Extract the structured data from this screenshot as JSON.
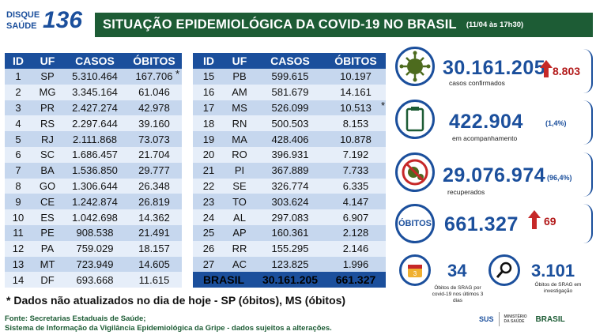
{
  "logo": {
    "line1": "DISQUE",
    "line2": "SAÚDE",
    "number": "136"
  },
  "title": {
    "main": "SITUAÇÃO EPIDEMIOLÓGICA DA COVID-19 NO BRASIL",
    "date": "(11/04 às 17h30)"
  },
  "table": {
    "headers": [
      "ID",
      "UF",
      "CASOS",
      "ÓBITOS"
    ],
    "left_rows": [
      [
        "1",
        "SP",
        "5.310.464",
        "167.706"
      ],
      [
        "2",
        "MG",
        "3.345.164",
        "61.046"
      ],
      [
        "3",
        "PR",
        "2.427.274",
        "42.978"
      ],
      [
        "4",
        "RS",
        "2.297.644",
        "39.160"
      ],
      [
        "5",
        "RJ",
        "2.111.868",
        "73.073"
      ],
      [
        "6",
        "SC",
        "1.686.457",
        "21.704"
      ],
      [
        "7",
        "BA",
        "1.536.850",
        "29.777"
      ],
      [
        "8",
        "GO",
        "1.306.644",
        "26.348"
      ],
      [
        "9",
        "CE",
        "1.242.874",
        "26.819"
      ],
      [
        "10",
        "ES",
        "1.042.698",
        "14.362"
      ],
      [
        "11",
        "PE",
        "908.538",
        "21.491"
      ],
      [
        "12",
        "PA",
        "759.029",
        "18.157"
      ],
      [
        "13",
        "MT",
        "723.949",
        "14.605"
      ],
      [
        "14",
        "DF",
        "693.668",
        "11.615"
      ]
    ],
    "right_rows": [
      [
        "15",
        "PB",
        "599.615",
        "10.197"
      ],
      [
        "16",
        "AM",
        "581.679",
        "14.161"
      ],
      [
        "17",
        "MS",
        "526.099",
        "10.513"
      ],
      [
        "18",
        "RN",
        "500.503",
        "8.153"
      ],
      [
        "19",
        "MA",
        "428.406",
        "10.878"
      ],
      [
        "20",
        "RO",
        "396.931",
        "7.192"
      ],
      [
        "21",
        "PI",
        "367.889",
        "7.733"
      ],
      [
        "22",
        "SE",
        "326.774",
        "6.335"
      ],
      [
        "23",
        "TO",
        "303.624",
        "4.147"
      ],
      [
        "24",
        "AL",
        "297.083",
        "6.907"
      ],
      [
        "25",
        "AP",
        "160.361",
        "2.128"
      ],
      [
        "26",
        "RR",
        "155.295",
        "2.146"
      ],
      [
        "27",
        "AC",
        "123.825",
        "1.996"
      ]
    ],
    "total": {
      "label": "BRASIL",
      "casos": "30.161.205",
      "obitos": "661.327"
    },
    "star": "*"
  },
  "note": "* Dados não atualizados no dia de hoje - SP (óbitos), MS (óbitos)",
  "footer": {
    "line1": "Fonte: Secretarias Estaduais de Saúde;",
    "line2": "Sistema de Informação da Vigilância Epidemiológica da Gripe - dados sujeitos a alterações."
  },
  "stats": {
    "confirmed": {
      "value": "30.161.205",
      "delta": "8.803",
      "label": "casos confirmados",
      "icon": "virus-icon"
    },
    "monitoring": {
      "value": "422.904",
      "pct": "(1,4%)",
      "label": "em acompanhamento",
      "icon": "clipboard-icon"
    },
    "recovered": {
      "value": "29.076.974",
      "pct": "(96,4%)",
      "label": "recuperados",
      "icon": "virus-crossed-icon"
    },
    "deaths": {
      "title": "ÓBITOS",
      "value": "661.327",
      "delta": "69"
    },
    "srag_3days": {
      "value": "34",
      "label": "Óbitos de SRAG por covid-19 nos últimos 3 dias",
      "icon": "calendar-icon"
    },
    "srag_investigation": {
      "value": "3.101",
      "label": "Óbitos de SRAG em investigação",
      "icon": "magnifier-icon"
    }
  },
  "partner_logos": {
    "sus": "SUS",
    "ministry": "MINISTÉRIO DA SAÚDE",
    "gov": "BRASIL"
  },
  "colors": {
    "green": "#1d5c35",
    "blue": "#1b4f9c",
    "red": "#c62828",
    "row_dark": "#c6d7ee",
    "row_light": "#e6eef9"
  }
}
